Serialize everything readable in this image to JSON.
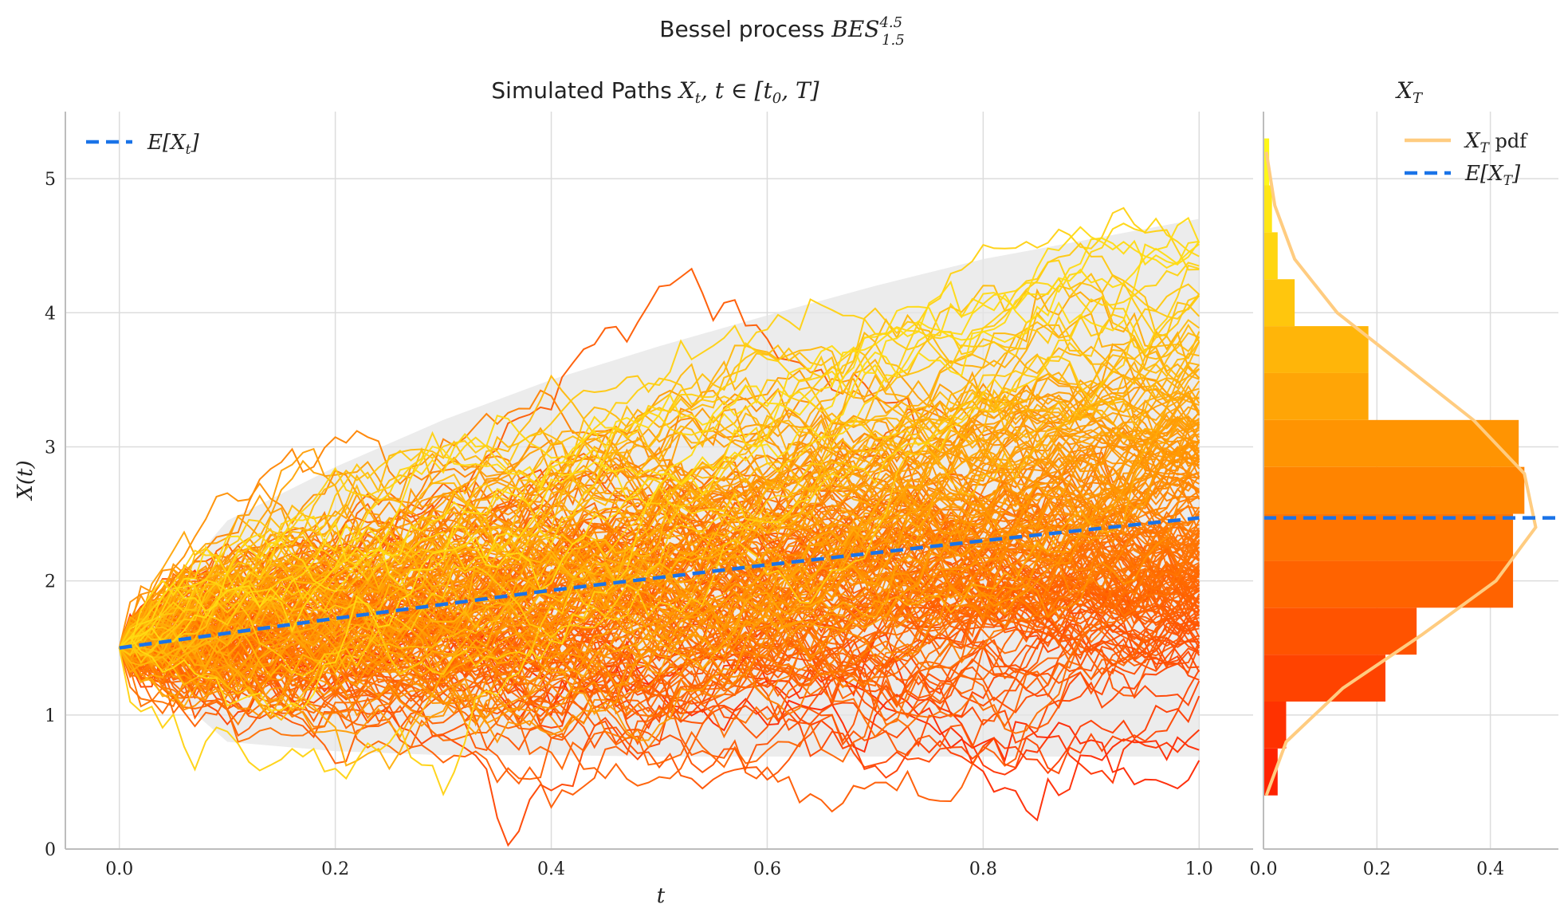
{
  "figure_title": "Bessel process BES^{4.5}_{1.5}",
  "chart_data": [
    {
      "type": "line",
      "panel": "paths",
      "title": "Simulated Paths X_t, t ∈ [t_0, T]",
      "xlabel": "t",
      "ylabel": "X(t)",
      "xlim": [
        -0.05,
        1.05
      ],
      "ylim": [
        0,
        5.5
      ],
      "xticks": [
        0.0,
        0.2,
        0.4,
        0.6,
        0.8,
        1.0
      ],
      "yticks": [
        0,
        1,
        2,
        3,
        4,
        5
      ],
      "grid": true,
      "legend": "top-left",
      "legend_entries": [
        "E[X_t]"
      ],
      "n_paths_approx": 200,
      "x0": 1.5,
      "mean_line": {
        "name": "E[X_t]",
        "x": [
          0.0,
          0.2,
          0.4,
          0.6,
          0.8,
          1.0
        ],
        "y": [
          1.5,
          1.72,
          1.93,
          2.12,
          2.3,
          2.47
        ],
        "color": "#1a73e8"
      },
      "band": {
        "x": [
          0.0,
          0.1,
          0.2,
          0.3,
          0.4,
          0.5,
          0.6,
          0.7,
          0.8,
          0.9,
          1.0
        ],
        "upper": [
          1.5,
          2.45,
          2.85,
          3.2,
          3.5,
          3.75,
          3.98,
          4.2,
          4.4,
          4.55,
          4.7
        ],
        "lower": [
          1.5,
          0.8,
          0.73,
          0.7,
          0.7,
          0.69,
          0.69,
          0.69,
          0.69,
          0.69,
          0.69
        ],
        "color": "#e6e6e6"
      },
      "path_colors": {
        "low": "#ff1a00",
        "mid": "#ff8c00",
        "high": "#ffff1a"
      }
    },
    {
      "type": "bar",
      "orientation": "horizontal",
      "panel": "distribution",
      "title": "X_T",
      "xlim": [
        0,
        0.52
      ],
      "xticks": [
        0.0,
        0.2,
        0.4
      ],
      "ylim": [
        0,
        5.5
      ],
      "legend": "top-right",
      "legend_entries": [
        "X_T pdf",
        "E[X_T]"
      ],
      "bins": [
        {
          "lo": 0.4,
          "hi": 0.75,
          "density": 0.025
        },
        {
          "lo": 0.75,
          "hi": 1.1,
          "density": 0.04
        },
        {
          "lo": 1.1,
          "hi": 1.45,
          "density": 0.215
        },
        {
          "lo": 1.45,
          "hi": 1.8,
          "density": 0.27
        },
        {
          "lo": 1.8,
          "hi": 2.15,
          "density": 0.44
        },
        {
          "lo": 2.15,
          "hi": 2.5,
          "density": 0.44
        },
        {
          "lo": 2.5,
          "hi": 2.85,
          "density": 0.46
        },
        {
          "lo": 2.85,
          "hi": 3.2,
          "density": 0.45
        },
        {
          "lo": 3.2,
          "hi": 3.55,
          "density": 0.185
        },
        {
          "lo": 3.55,
          "hi": 3.9,
          "density": 0.185
        },
        {
          "lo": 3.9,
          "hi": 4.25,
          "density": 0.055
        },
        {
          "lo": 4.25,
          "hi": 4.6,
          "density": 0.025
        },
        {
          "lo": 4.6,
          "hi": 4.95,
          "density": 0.015
        },
        {
          "lo": 4.95,
          "hi": 5.3,
          "density": 0.01
        }
      ],
      "pdf": {
        "name": "X_T pdf",
        "y": [
          0.4,
          0.8,
          1.2,
          1.6,
          2.0,
          2.4,
          2.8,
          3.2,
          3.6,
          4.0,
          4.4,
          4.8,
          5.2
        ],
        "density": [
          0.005,
          0.04,
          0.14,
          0.28,
          0.41,
          0.48,
          0.46,
          0.37,
          0.25,
          0.13,
          0.055,
          0.02,
          0.005
        ],
        "color": "#ffcc80"
      },
      "mean": {
        "name": "E[X_T]",
        "value": 2.47,
        "color": "#1a73e8"
      }
    }
  ]
}
